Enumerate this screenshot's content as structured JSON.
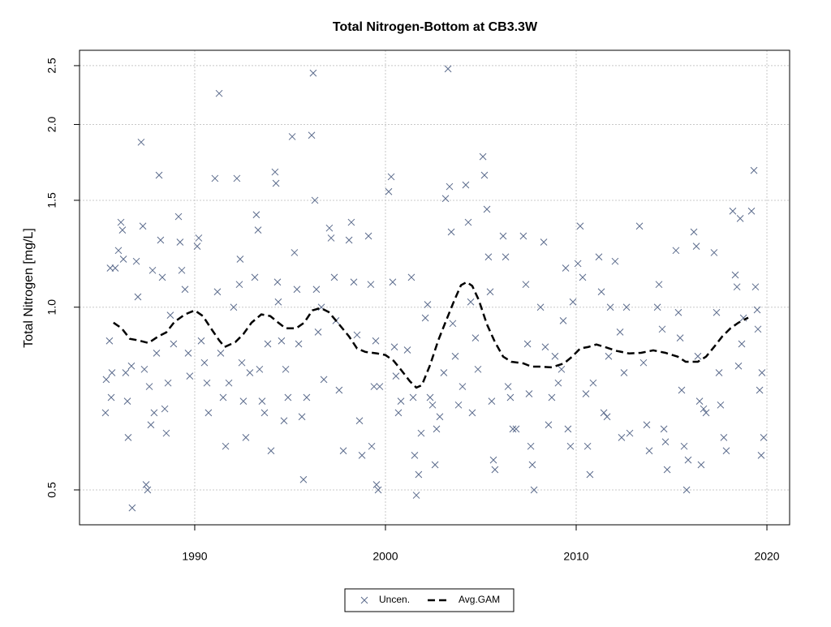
{
  "chart_data": {
    "type": "scatter",
    "title": "Total Nitrogen-Bottom at CB3.3W",
    "y_label": "Total Nitrogen [mg/L]",
    "xlim": [
      1983.96,
      2021.19
    ],
    "xticks": [
      1990,
      2000,
      2010,
      2020
    ],
    "ylim": [
      0.438,
      2.65
    ],
    "ylog": true,
    "yticks": [
      0.5,
      {
        "value": 1,
        "label": "1.0"
      },
      1.5,
      {
        "value": 2,
        "label": "2.0"
      },
      2.5
    ],
    "grid": true,
    "legend": "bottom",
    "series": [
      {
        "name": "Uncen.",
        "color": "#5b6b8c",
        "marker": "x",
        "x": [
          1985.32,
          1985.36,
          1985.53,
          1985.57,
          1985.62,
          1985.66,
          1985.83,
          1986.0,
          1986.13,
          1986.21,
          1986.26,
          1986.38,
          1986.47,
          1986.51,
          1986.68,
          1986.72,
          1986.94,
          1987.02,
          1987.19,
          1987.28,
          1987.36,
          1987.45,
          1987.53,
          1987.62,
          1987.7,
          1987.79,
          1987.87,
          1988.0,
          1988.13,
          1988.21,
          1988.3,
          1988.43,
          1988.51,
          1988.6,
          1988.72,
          1988.89,
          1989.15,
          1989.23,
          1989.32,
          1989.49,
          1989.66,
          1989.74,
          1990.13,
          1990.21,
          1990.34,
          1990.51,
          1990.64,
          1990.72,
          1991.06,
          1991.19,
          1991.28,
          1991.36,
          1991.49,
          1991.62,
          1991.79,
          1992.04,
          1992.21,
          1992.34,
          1992.38,
          1992.47,
          1992.55,
          1992.68,
          1992.89,
          1993.15,
          1993.23,
          1993.32,
          1993.4,
          1993.53,
          1993.66,
          1993.83,
          1994.0,
          1994.21,
          1994.26,
          1994.34,
          1994.38,
          1994.55,
          1994.68,
          1994.77,
          1994.89,
          1995.11,
          1995.23,
          1995.36,
          1995.45,
          1995.62,
          1995.7,
          1995.87,
          1996.13,
          1996.21,
          1996.3,
          1996.38,
          1996.47,
          1996.64,
          1996.77,
          1997.06,
          1997.15,
          1997.32,
          1997.4,
          1997.57,
          1997.79,
          1998.09,
          1998.21,
          1998.34,
          1998.51,
          1998.64,
          1998.77,
          1999.11,
          1999.23,
          1999.28,
          1999.4,
          1999.49,
          1999.53,
          1999.62,
          1999.7,
          2000.17,
          2000.3,
          2000.38,
          2000.47,
          2000.55,
          2000.68,
          2000.81,
          2001.15,
          2001.36,
          2001.45,
          2001.53,
          2001.62,
          2001.74,
          2001.87,
          2002.09,
          2002.21,
          2002.34,
          2002.47,
          2002.6,
          2002.68,
          2002.85,
          2003.06,
          2003.15,
          2003.28,
          2003.36,
          2003.45,
          2003.53,
          2003.66,
          2003.83,
          2004.04,
          2004.21,
          2004.34,
          2004.47,
          2004.55,
          2004.72,
          2004.85,
          2005.11,
          2005.19,
          2005.32,
          2005.4,
          2005.49,
          2005.57,
          2005.66,
          2005.74,
          2006.17,
          2006.3,
          2006.43,
          2006.55,
          2006.68,
          2006.85,
          2007.23,
          2007.36,
          2007.45,
          2007.53,
          2007.62,
          2007.7,
          2007.79,
          2008.13,
          2008.3,
          2008.38,
          2008.55,
          2008.72,
          2008.89,
          2009.06,
          2009.23,
          2009.32,
          2009.45,
          2009.57,
          2009.7,
          2009.83,
          2010.09,
          2010.21,
          2010.34,
          2010.51,
          2010.6,
          2010.72,
          2010.89,
          2011.19,
          2011.32,
          2011.45,
          2011.62,
          2011.7,
          2011.79,
          2012.04,
          2012.3,
          2012.38,
          2012.51,
          2012.64,
          2012.81,
          2013.32,
          2013.53,
          2013.7,
          2013.83,
          2014.26,
          2014.34,
          2014.51,
          2014.6,
          2014.68,
          2014.77,
          2015.23,
          2015.36,
          2015.45,
          2015.53,
          2015.66,
          2015.79,
          2015.87,
          2016.17,
          2016.3,
          2016.38,
          2016.47,
          2016.55,
          2016.68,
          2016.81,
          2017.23,
          2017.36,
          2017.49,
          2017.57,
          2017.74,
          2017.87,
          2018.21,
          2018.34,
          2018.43,
          2018.51,
          2018.6,
          2018.68,
          2018.77,
          2019.19,
          2019.32,
          2019.4,
          2019.49,
          2019.53,
          2019.62,
          2019.7,
          2019.74,
          2019.83
        ],
        "values": [
          0.67,
          0.76,
          0.88,
          1.16,
          0.71,
          0.78,
          1.16,
          1.24,
          1.38,
          1.34,
          1.2,
          0.78,
          0.7,
          0.61,
          0.8,
          0.467,
          1.19,
          1.04,
          1.87,
          1.36,
          0.79,
          0.51,
          0.5,
          0.74,
          0.64,
          1.15,
          0.67,
          0.84,
          1.65,
          1.29,
          1.12,
          0.68,
          0.62,
          0.75,
          0.97,
          0.87,
          1.41,
          1.28,
          1.15,
          1.07,
          0.84,
          0.77,
          1.26,
          1.3,
          0.88,
          0.81,
          0.75,
          0.67,
          1.63,
          1.06,
          2.25,
          0.84,
          0.71,
          0.59,
          0.75,
          1.0,
          1.63,
          1.09,
          1.2,
          0.81,
          0.7,
          0.61,
          0.78,
          1.12,
          1.42,
          1.34,
          0.79,
          0.7,
          0.67,
          0.87,
          0.58,
          1.67,
          1.6,
          1.1,
          1.02,
          0.88,
          0.65,
          0.79,
          0.71,
          1.91,
          1.23,
          1.07,
          0.87,
          0.66,
          0.52,
          0.71,
          1.92,
          2.43,
          1.5,
          1.07,
          0.91,
          1.0,
          0.76,
          1.35,
          1.3,
          1.12,
          0.95,
          0.73,
          0.58,
          1.29,
          1.38,
          1.1,
          0.9,
          0.65,
          0.57,
          1.31,
          1.09,
          0.59,
          0.74,
          0.88,
          0.51,
          0.5,
          0.74,
          1.55,
          1.64,
          1.1,
          0.86,
          0.77,
          0.67,
          0.7,
          0.85,
          1.12,
          0.71,
          0.57,
          0.49,
          0.53,
          0.62,
          0.96,
          1.01,
          0.71,
          0.69,
          0.55,
          0.63,
          0.66,
          0.78,
          1.51,
          2.47,
          1.58,
          1.33,
          0.94,
          0.83,
          0.69,
          0.74,
          1.59,
          1.38,
          1.02,
          0.67,
          0.89,
          0.79,
          1.77,
          1.65,
          1.45,
          1.21,
          1.06,
          0.7,
          0.56,
          0.54,
          1.31,
          1.21,
          0.74,
          0.71,
          0.63,
          0.63,
          1.31,
          1.09,
          0.87,
          0.72,
          0.59,
          0.55,
          0.5,
          1.0,
          1.28,
          0.86,
          0.64,
          0.71,
          0.83,
          0.75,
          0.79,
          0.95,
          1.16,
          0.63,
          0.59,
          1.02,
          1.18,
          1.36,
          1.12,
          0.72,
          0.59,
          0.53,
          0.75,
          1.21,
          1.06,
          0.67,
          0.66,
          0.83,
          1.0,
          1.19,
          0.91,
          0.61,
          0.78,
          1.0,
          0.62,
          1.36,
          0.81,
          0.64,
          0.58,
          1.0,
          1.09,
          0.92,
          0.63,
          0.6,
          0.54,
          1.24,
          0.98,
          0.89,
          0.73,
          0.59,
          0.5,
          0.56,
          1.33,
          1.26,
          0.83,
          0.7,
          0.55,
          0.68,
          0.67,
          1.23,
          0.98,
          0.78,
          0.69,
          0.61,
          0.58,
          1.44,
          1.13,
          1.08,
          0.8,
          1.4,
          0.87,
          0.96,
          1.44,
          1.68,
          1.08,
          0.99,
          0.92,
          0.73,
          0.57,
          0.78,
          0.61
        ]
      },
      {
        "name": "Avg.GAM",
        "color": "#000000",
        "dashed": true,
        "x": [
          1985.74,
          1986.17,
          1986.6,
          1987.02,
          1987.57,
          1988.09,
          1988.51,
          1988.94,
          1989.49,
          1990.0,
          1990.43,
          1990.85,
          1991.28,
          1991.57,
          1992.13,
          1992.55,
          1992.98,
          1993.49,
          1993.96,
          1994.38,
          1994.77,
          1995.32,
          1995.74,
          1996.17,
          1996.6,
          1997.02,
          1997.57,
          1998.09,
          1998.51,
          1998.94,
          1999.57,
          2000.0,
          2000.43,
          2000.85,
          2001.28,
          2001.62,
          2001.91,
          2002.34,
          2002.77,
          2003.19,
          2003.62,
          2003.96,
          2004.26,
          2004.55,
          2004.89,
          2005.32,
          2005.74,
          2006.17,
          2006.6,
          2007.23,
          2007.66,
          2008.09,
          2008.72,
          2009.36,
          2009.79,
          2010.21,
          2010.64,
          2011.06,
          2011.49,
          2012.13,
          2012.77,
          2013.4,
          2014.04,
          2014.68,
          2015.32,
          2015.74,
          2016.38,
          2016.81,
          2017.23,
          2017.66,
          2018.09,
          2018.51,
          2019.02
        ],
        "values": [
          0.943,
          0.923,
          0.887,
          0.882,
          0.873,
          0.895,
          0.909,
          0.946,
          0.973,
          0.988,
          0.967,
          0.923,
          0.882,
          0.86,
          0.876,
          0.903,
          0.943,
          0.973,
          0.967,
          0.943,
          0.923,
          0.923,
          0.943,
          0.988,
          0.997,
          0.982,
          0.937,
          0.895,
          0.855,
          0.844,
          0.839,
          0.834,
          0.816,
          0.786,
          0.755,
          0.737,
          0.744,
          0.803,
          0.882,
          0.952,
          1.028,
          1.087,
          1.1,
          1.084,
          1.028,
          0.937,
          0.876,
          0.829,
          0.813,
          0.808,
          0.798,
          0.798,
          0.796,
          0.808,
          0.829,
          0.855,
          0.86,
          0.868,
          0.86,
          0.847,
          0.839,
          0.841,
          0.849,
          0.841,
          0.829,
          0.813,
          0.813,
          0.829,
          0.86,
          0.895,
          0.923,
          0.943,
          0.961
        ]
      }
    ]
  }
}
